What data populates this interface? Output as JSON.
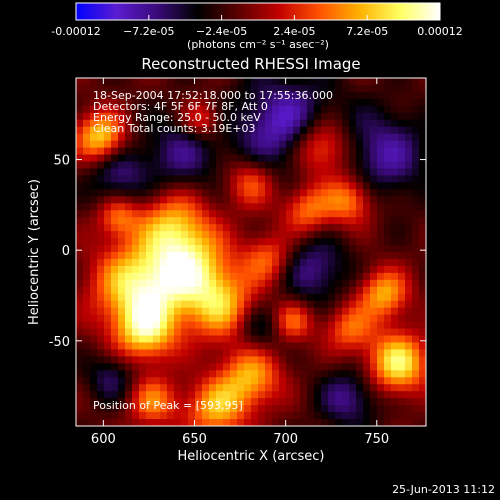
{
  "colorbar": {
    "tick_labels": [
      "-0.00012",
      "−7.2e-05",
      "−2.4e-05",
      "2.4e-05",
      "7.2e-05",
      "0.00012"
    ],
    "tick_values": [
      -0.00012,
      -7.2e-05,
      -2.4e-05,
      2.4e-05,
      7.2e-05,
      0.00012
    ],
    "unit_label": "(photons cm⁻² s⁻¹ asec⁻²)",
    "colors": [
      "#0000ff",
      "#5a1cd0",
      "#3a0a7a",
      "#000000",
      "#5a0000",
      "#c00000",
      "#ff5000",
      "#ffb000",
      "#ffff60",
      "#ffffff"
    ]
  },
  "chart_data": {
    "type": "heatmap",
    "title": "Reconstructed RHESSI Image",
    "xlabel": "Heliocentric X (arcsec)",
    "ylabel": "Heliocentric Y (arcsec)",
    "xlim": [
      585,
      777
    ],
    "ylim": [
      -97,
      95
    ],
    "xticks": [
      600,
      650,
      700,
      750
    ],
    "yticks": [
      -50,
      0,
      50
    ],
    "annotations": [
      "18-Sep-2004 17:52:18.000 to 17:55:36.000",
      "Detectors: 4F 5F 6F 7F 8F, Att 0",
      "Energy Range: 25.0 - 50.0 keV",
      "Clean     Total counts: 3.19E+03"
    ],
    "peak_label": "Position of Peak = [593,95]",
    "peak": [
      593,
      95
    ]
  },
  "footer": {
    "timestamp": "25-Jun-2013 11:12"
  }
}
